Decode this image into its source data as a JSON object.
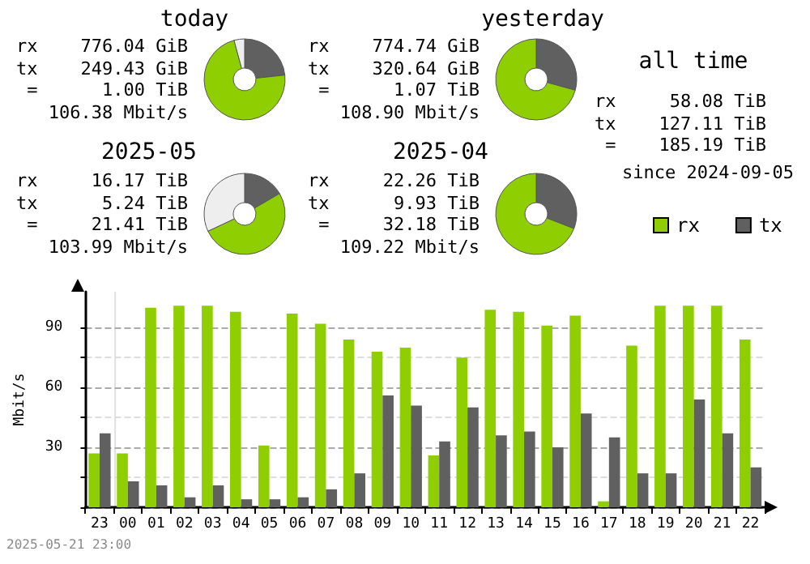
{
  "chart_data": [
    {
      "type": "donut",
      "title": "today",
      "annotations": [
        "rx    776.04 GiB",
        "tx    249.43 GiB",
        " =      1.00 TiB",
        "106.38 Mbit/s"
      ],
      "values": [
        23.3,
        72.5,
        4.2
      ],
      "colors": [
        "#606060",
        "#8fce00",
        "#eeeeee"
      ]
    },
    {
      "type": "donut",
      "title": "yesterday",
      "annotations": [
        "rx    774.74 GiB",
        "tx    320.64 GiB",
        " =      1.07 TiB",
        "108.90 Mbit/s"
      ],
      "values": [
        29.3,
        70.7
      ],
      "colors": [
        "#606060",
        "#8fce00"
      ]
    },
    {
      "type": "donut",
      "title": "2025-05",
      "annotations": [
        "rx     16.17 TiB",
        "tx      5.24 TiB",
        " =     21.41 TiB",
        "103.99 Mbit/s"
      ],
      "values": [
        16.6,
        51.4,
        32
      ],
      "colors": [
        "#606060",
        "#8fce00",
        "#eeeeee"
      ]
    },
    {
      "type": "donut",
      "title": "2025-04",
      "annotations": [
        "rx     22.26 TiB",
        "tx      9.93 TiB",
        " =     32.18 TiB",
        "109.22 Mbit/s"
      ],
      "values": [
        30.9,
        69.1
      ],
      "colors": [
        "#606060",
        "#8fce00"
      ]
    },
    {
      "type": "other",
      "title": "all time",
      "annotations": [
        "rx     58.08 TiB",
        "tx    127.11 TiB",
        " =    185.19 TiB",
        "since 2024-09-05"
      ]
    },
    {
      "type": "bar",
      "ylabel": "Mbit/s",
      "categories": [
        "23",
        "00",
        "01",
        "02",
        "03",
        "04",
        "05",
        "06",
        "07",
        "08",
        "09",
        "10",
        "11",
        "12",
        "13",
        "14",
        "15",
        "16",
        "17",
        "18",
        "19",
        "20",
        "21",
        "22"
      ],
      "series": [
        {
          "name": "rx",
          "color": "#8fce00",
          "values": [
            27,
            27,
            100,
            101,
            101,
            98,
            31,
            97,
            92,
            84,
            78,
            80,
            26,
            75,
            99,
            98,
            91,
            96,
            3,
            81,
            101,
            101,
            101,
            84
          ]
        },
        {
          "name": "tx",
          "color": "#606060",
          "values": [
            37,
            13,
            11,
            5,
            11,
            4,
            4,
            5,
            9,
            17,
            56,
            51,
            33,
            50,
            36,
            38,
            30,
            47,
            35,
            17,
            17,
            54,
            37,
            20
          ]
        }
      ],
      "ylim": [
        0,
        108
      ],
      "yticks": [
        {
          "value": 0,
          "label": null
        },
        {
          "value": 15,
          "label": null
        },
        30,
        {
          "value": 45,
          "label": null
        },
        60,
        {
          "value": 75,
          "label": null
        },
        90
      ],
      "grid": "y",
      "legend": "top right",
      "ref_lines": [
        {
          "axis": "x",
          "value": "00",
          "color": "#e0e0e0"
        }
      ],
      "annotations": [
        "2025-05-21 23:00"
      ]
    }
  ]
}
